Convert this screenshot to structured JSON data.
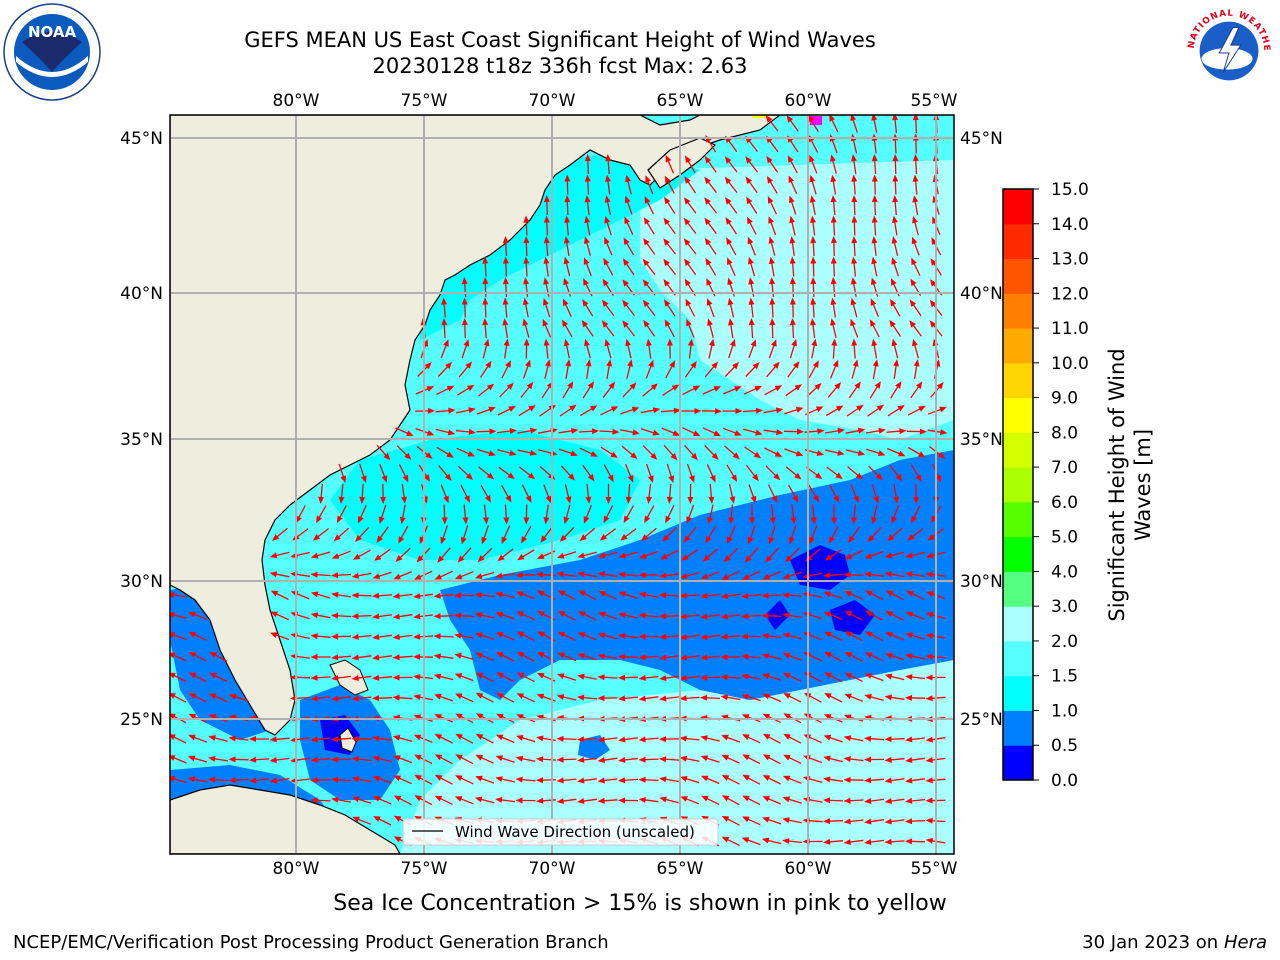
{
  "title": {
    "line1": "GEFS MEAN US East Coast Significant Height of Wind Waves",
    "line2": "20230128 t18z 336h fcst   Max: 2.63"
  },
  "map": {
    "lon_labels": [
      "80°W",
      "75°W",
      "70°W",
      "65°W",
      "60°W",
      "55°W"
    ],
    "lat_labels": [
      "45°N",
      "40°N",
      "35°N",
      "30°N",
      "25°N"
    ],
    "legend_label": "Wind Wave Direction (unscaled)",
    "land_color": "#efedde",
    "arrow_color": "#ff0000"
  },
  "colorbar": {
    "label_line1": "Significant Height of Wind",
    "label_line2": "Waves [m]",
    "ticks": [
      "0.0",
      "0.5",
      "1.0",
      "1.5",
      "2.0",
      "3.0",
      "4.0",
      "5.0",
      "6.0",
      "7.0",
      "8.0",
      "9.0",
      "10.0",
      "11.0",
      "12.0",
      "13.0",
      "14.0",
      "15.0"
    ],
    "colors": [
      "#0000ff",
      "#0080ff",
      "#00ffff",
      "#55ffff",
      "#aaffff",
      "#55ff80",
      "#00ff00",
      "#55ff00",
      "#aaff00",
      "#d4ff00",
      "#ffff00",
      "#ffd500",
      "#ffaa00",
      "#ff8000",
      "#ff5500",
      "#ff2a00",
      "#ff0000"
    ]
  },
  "ice_note": "Sea Ice Concentration > 15% is shown in pink to yellow",
  "footer": {
    "left": "NCEP/EMC/Verification Post Processing Product Generation Branch",
    "right_date": "30 Jan 2023 on ",
    "right_host": "Hera"
  },
  "logos": {
    "noaa_text": "NOAA",
    "nws_text": "NATIONAL WEATHER SERVICE"
  }
}
